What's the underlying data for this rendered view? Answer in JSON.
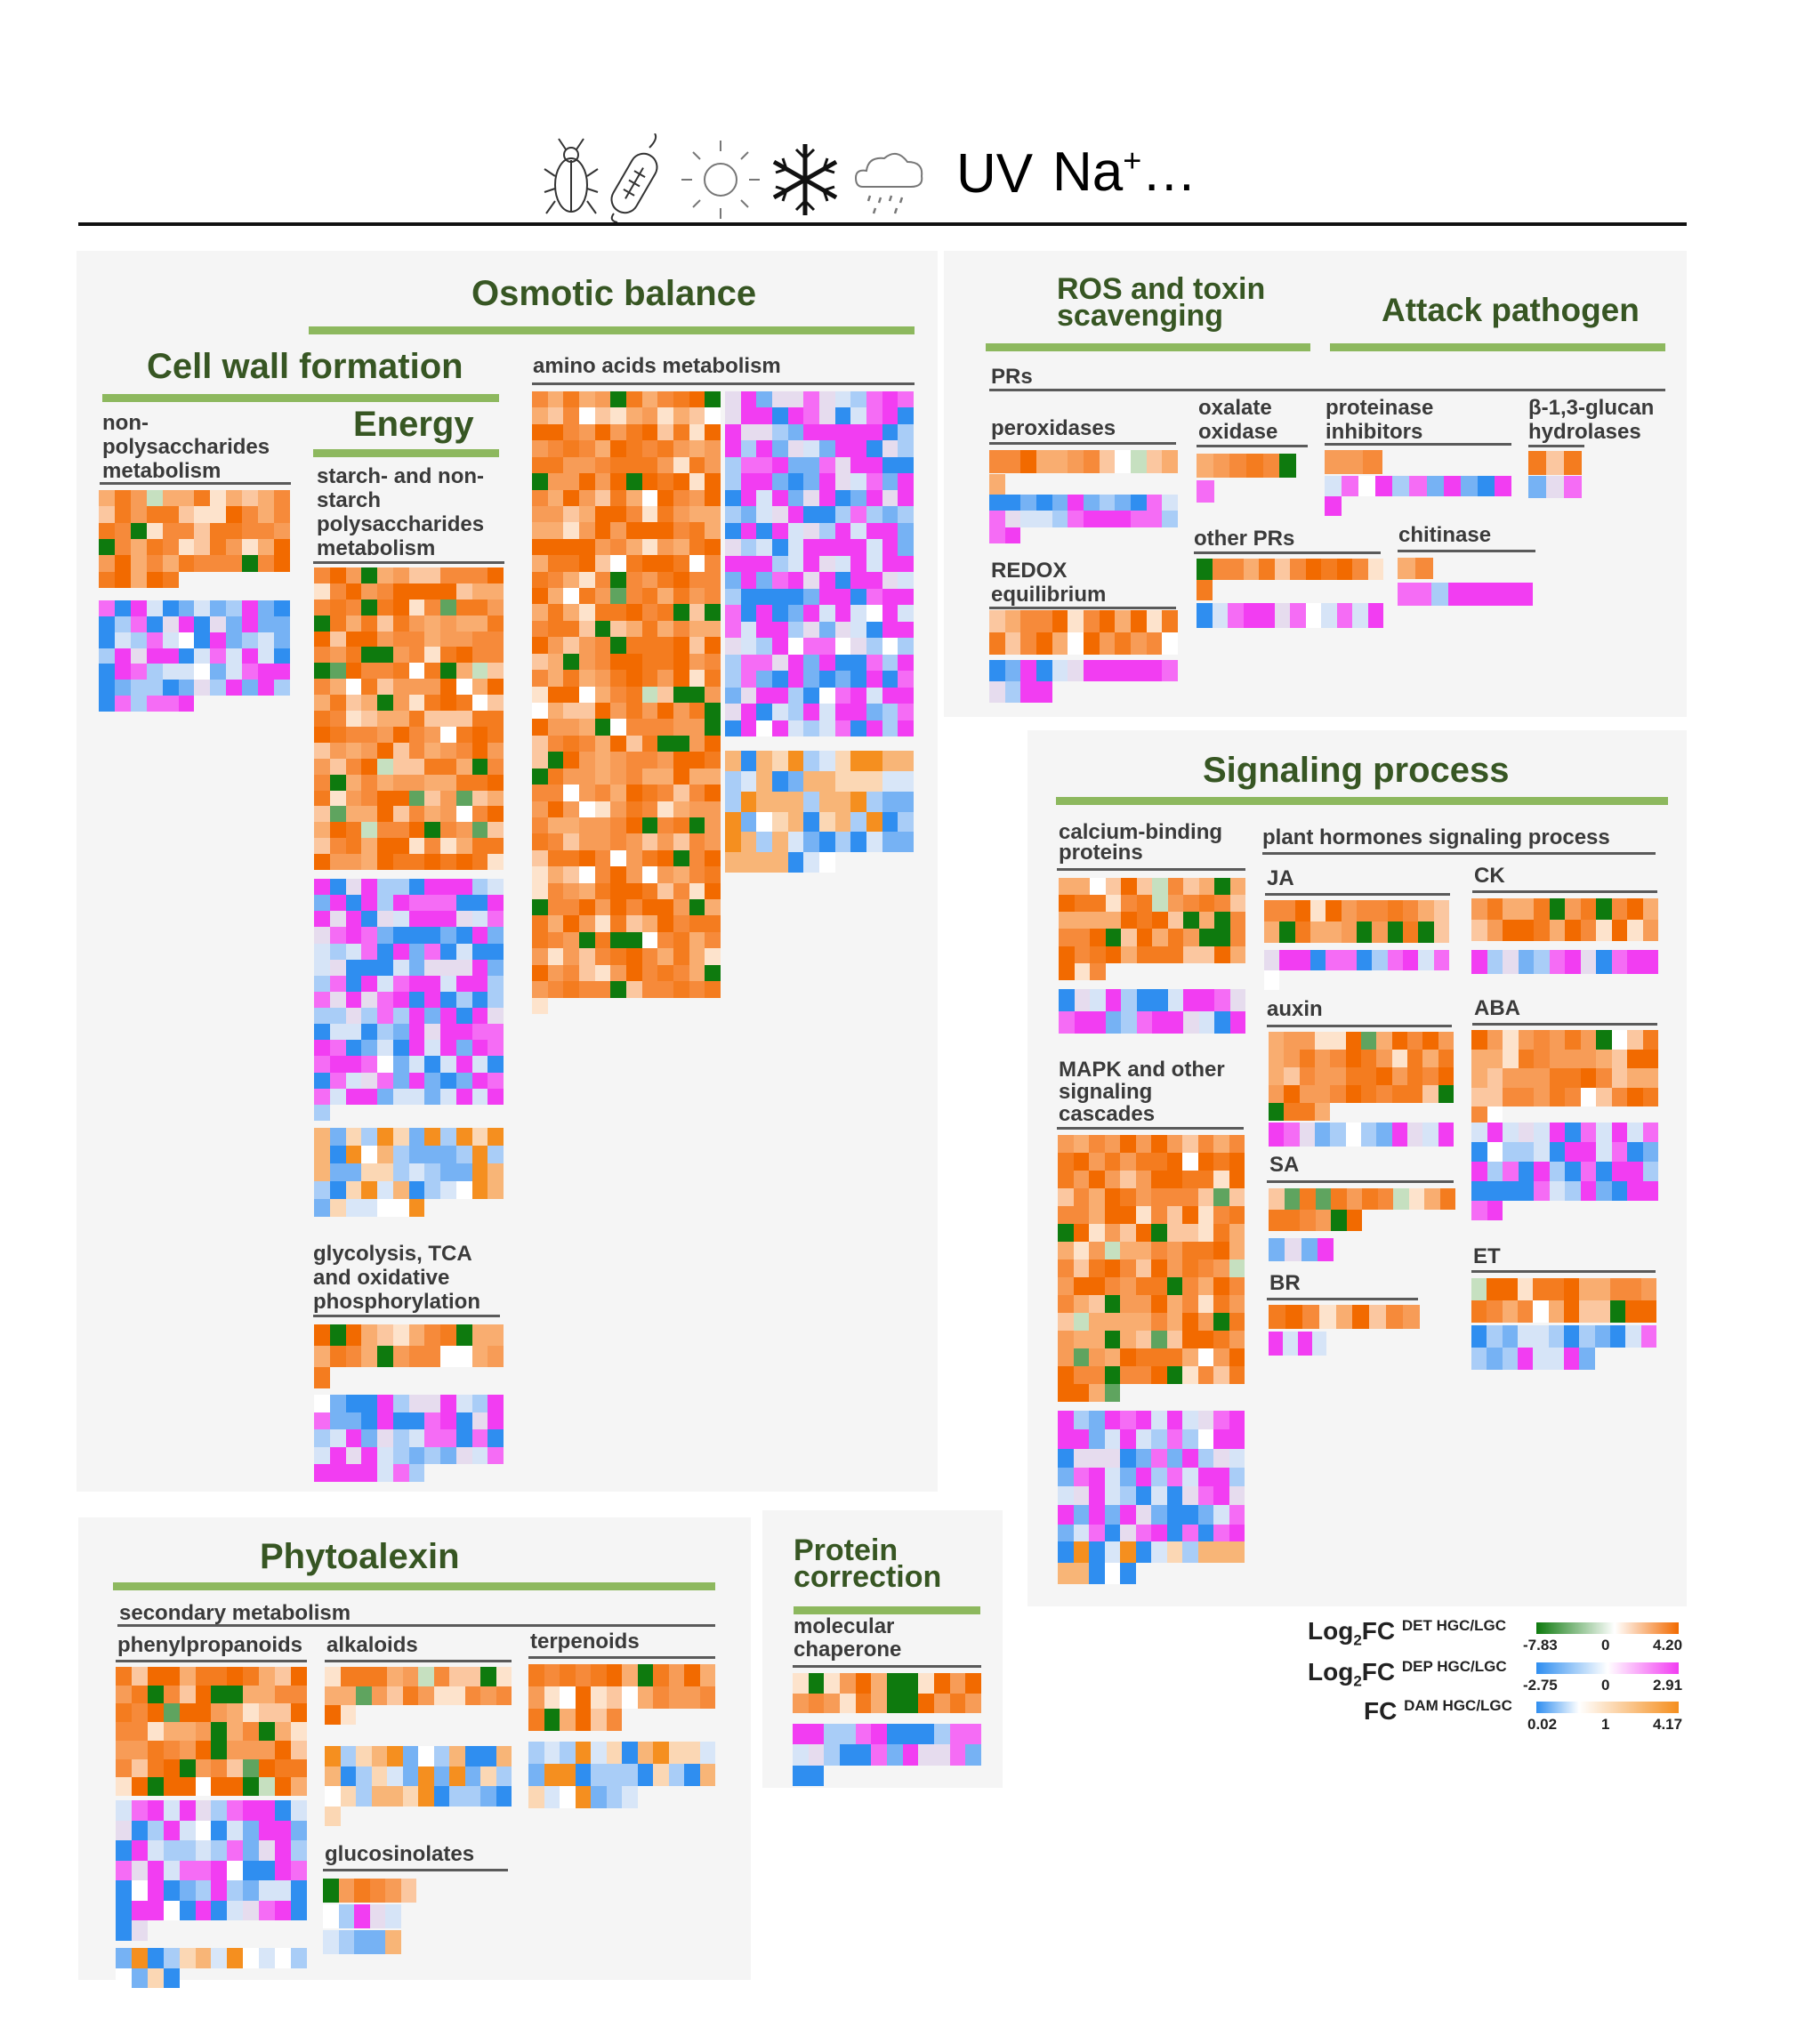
{
  "header": {
    "uv": "UV",
    "na": "Na",
    "na_sup": "+",
    "ellipsis": "…",
    "icons": [
      "beetle-icon",
      "bacterium-icon",
      "sun-icon",
      "snowflake-icon",
      "rain-cloud-icon"
    ]
  },
  "panels": {
    "osmotic": "Osmotic balance",
    "cellwall": "Cell wall formation",
    "energy": "Energy",
    "ros": "ROS and toxin scavenging",
    "attack": "Attack pathogen",
    "signaling": "Signaling process",
    "phytoalexin": "Phytoalexin",
    "protein": "Protein correction"
  },
  "labels": {
    "amino": "amino acids metabolism",
    "nonpoly": "non-polysaccharides metabolism",
    "starch": "starch- and non-starch polysaccharides metabolism",
    "glycolysis": "glycolysis, TCA and oxidative phosphorylation",
    "prs": "PRs",
    "peroxidases": "peroxidases",
    "oxalate": "oxalate oxidase",
    "proteinase": "proteinase inhibitors",
    "glucan": "β-1,3-glucan hydrolases",
    "otherprs": "other PRs",
    "chitinase": "chitinase",
    "redox": "REDOX equilibrium",
    "calcium": "calcium-binding proteins",
    "hormones": "plant hormones signaling process",
    "ja": "JA",
    "ck": "CK",
    "auxin": "auxin",
    "aba": "ABA",
    "sa": "SA",
    "br": "BR",
    "et": "ET",
    "mapk": "MAPK and other signaling cascades",
    "secondary": "secondary metabolism",
    "phenyl": "phenylpropanoids",
    "alkaloids": "alkaloids",
    "terpenoids": "terpenoids",
    "glucosinolates": "glucosinolates",
    "chaperone": "molecular chaperone"
  },
  "legend": {
    "det": {
      "prefix": "Log",
      "sub": "2",
      "main": "FC",
      "small": "DET HGC/LGC",
      "min": "-7.83",
      "mid": "0",
      "max": "4.20"
    },
    "dep": {
      "prefix": "Log",
      "sub": "2",
      "main": "FC",
      "small": "DEP HGC/LGC",
      "min": "-2.75",
      "mid": "0",
      "max": "2.91"
    },
    "dam": {
      "prefix": "",
      "sub": "",
      "main": "FC",
      "small": "DAM HGC/LGC",
      "min": "0.02",
      "mid": "1",
      "max": "4.17"
    }
  },
  "colors": {
    "green_dark": "#0e7a0e",
    "orange_dark": "#f26a00",
    "blue_dark": "#2f8ef0",
    "magenta": "#f23df2",
    "dam_orange": "#f58f1f",
    "panel_bg": "#f5f5f5",
    "heading_green": "#375623",
    "bar_green": "#8db85e"
  }
}
